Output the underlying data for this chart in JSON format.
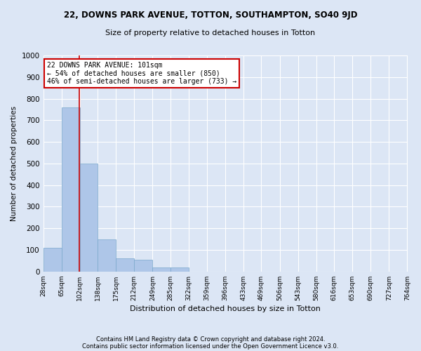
{
  "title": "22, DOWNS PARK AVENUE, TOTTON, SOUTHAMPTON, SO40 9JD",
  "subtitle": "Size of property relative to detached houses in Totton",
  "xlabel": "Distribution of detached houses by size in Totton",
  "ylabel": "Number of detached properties",
  "footer1": "Contains HM Land Registry data © Crown copyright and database right 2024.",
  "footer2": "Contains public sector information licensed under the Open Government Licence v3.0.",
  "bin_labels": [
    "28sqm",
    "65sqm",
    "102sqm",
    "138sqm",
    "175sqm",
    "212sqm",
    "249sqm",
    "285sqm",
    "322sqm",
    "359sqm",
    "396sqm",
    "433sqm",
    "469sqm",
    "506sqm",
    "543sqm",
    "580sqm",
    "616sqm",
    "653sqm",
    "690sqm",
    "727sqm",
    "764sqm"
  ],
  "bin_edges": [
    28,
    65,
    102,
    138,
    175,
    212,
    249,
    285,
    322,
    359,
    396,
    433,
    469,
    506,
    543,
    580,
    616,
    653,
    690,
    727,
    764
  ],
  "bar_heights": [
    110,
    760,
    500,
    150,
    60,
    55,
    20,
    20,
    0,
    0,
    0,
    0,
    0,
    0,
    0,
    0,
    0,
    0,
    0,
    0
  ],
  "bar_color": "#aec6e8",
  "bar_edge_color": "#7aa8cc",
  "background_color": "#dce6f5",
  "grid_color": "#ffffff",
  "property_line_x": 101,
  "annotation_line1": "22 DOWNS PARK AVENUE: 101sqm",
  "annotation_line2": "← 54% of detached houses are smaller (850)",
  "annotation_line3": "46% of semi-detached houses are larger (733) →",
  "annotation_box_color": "#ffffff",
  "annotation_box_edge_color": "#cc0000",
  "red_line_color": "#cc0000",
  "ylim": [
    0,
    1000
  ],
  "yticks": [
    0,
    100,
    200,
    300,
    400,
    500,
    600,
    700,
    800,
    900,
    1000
  ]
}
